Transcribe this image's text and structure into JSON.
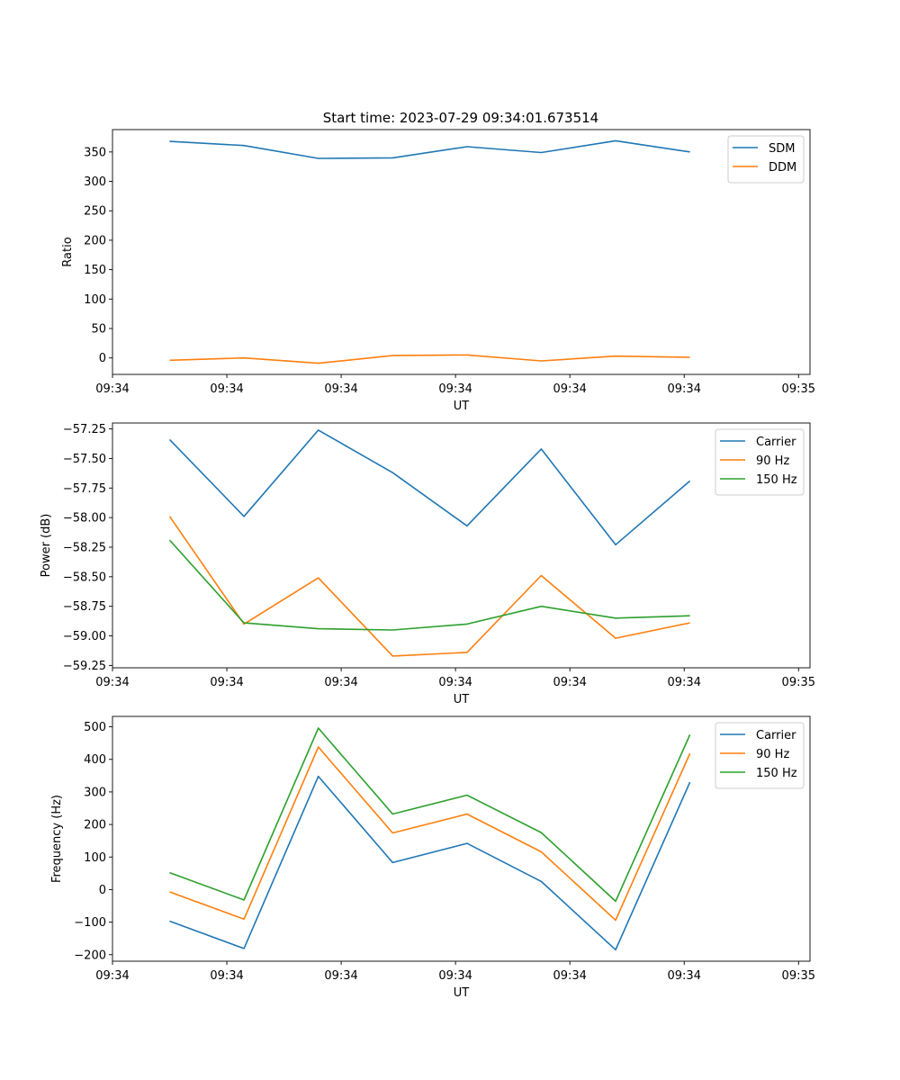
{
  "figure_title": "Start time: 2023-07-29 09:34:01.673514",
  "chart_data": [
    {
      "type": "line",
      "title": "Start time: 2023-07-29 09:34:01.673514",
      "xlabel": "UT",
      "ylabel": "Ratio",
      "xlim": [
        0,
        12.2
      ],
      "ylim": [
        -28,
        388
      ],
      "x": [
        1,
        2.3,
        3.6,
        4.9,
        6.2,
        7.5,
        8.8,
        10.1
      ],
      "xticks": [
        0,
        2,
        4,
        6,
        8,
        10,
        12
      ],
      "xtick_labels": [
        "09:34",
        "09:34",
        "09:34",
        "09:34",
        "09:34",
        "09:34",
        "09:35"
      ],
      "yticks": [
        0,
        50,
        100,
        150,
        200,
        250,
        300,
        350
      ],
      "ytick_labels": [
        "0",
        "50",
        "100",
        "150",
        "200",
        "250",
        "300",
        "350"
      ],
      "legend_position": "top-right",
      "series": [
        {
          "name": "SDM",
          "color": "#1f77b4",
          "values": [
            368,
            361,
            339,
            340,
            359,
            349,
            369,
            350
          ]
        },
        {
          "name": "DDM",
          "color": "#ff7f0e",
          "values": [
            -4,
            0,
            -9,
            4,
            5,
            -5,
            3,
            1
          ]
        }
      ]
    },
    {
      "type": "line",
      "title": "",
      "xlabel": "UT",
      "ylabel": "Power (dB)",
      "xlim": [
        0,
        12.2
      ],
      "ylim": [
        -59.27,
        -57.2
      ],
      "x": [
        1,
        2.3,
        3.6,
        4.9,
        6.2,
        7.5,
        8.8,
        10.1
      ],
      "xticks": [
        0,
        2,
        4,
        6,
        8,
        10,
        12
      ],
      "xtick_labels": [
        "09:34",
        "09:34",
        "09:34",
        "09:34",
        "09:34",
        "09:34",
        "09:35"
      ],
      "yticks": [
        -59.25,
        -59.0,
        -58.75,
        -58.5,
        -58.25,
        -58.0,
        -57.75,
        -57.5,
        -57.25
      ],
      "ytick_labels": [
        "−59.25",
        "−59.00",
        "−58.75",
        "−58.50",
        "−58.25",
        "−58.00",
        "−57.75",
        "−57.50",
        "−57.25"
      ],
      "legend_position": "top-right",
      "series": [
        {
          "name": "Carrier",
          "color": "#1f77b4",
          "values": [
            -57.34,
            -57.99,
            -57.26,
            -57.62,
            -58.07,
            -57.42,
            -58.23,
            -57.69
          ]
        },
        {
          "name": "90 Hz",
          "color": "#ff7f0e",
          "values": [
            -57.99,
            -58.9,
            -58.51,
            -59.17,
            -59.14,
            -58.49,
            -59.02,
            -58.89
          ]
        },
        {
          "name": "150 Hz",
          "color": "#2ca02c",
          "values": [
            -58.19,
            -58.89,
            -58.94,
            -58.95,
            -58.9,
            -58.75,
            -58.85,
            -58.83
          ]
        }
      ]
    },
    {
      "type": "line",
      "title": "",
      "xlabel": "UT",
      "ylabel": "Frequency (Hz)",
      "xlim": [
        0,
        12.2
      ],
      "ylim": [
        -220,
        532
      ],
      "x": [
        1,
        2.3,
        3.6,
        4.9,
        6.2,
        7.5,
        8.8,
        10.1
      ],
      "xticks": [
        0,
        2,
        4,
        6,
        8,
        10,
        12
      ],
      "xtick_labels": [
        "09:34",
        "09:34",
        "09:34",
        "09:34",
        "09:34",
        "09:34",
        "09:35"
      ],
      "yticks": [
        -200,
        -100,
        0,
        100,
        200,
        300,
        400,
        500
      ],
      "ytick_labels": [
        "−200",
        "−100",
        "0",
        "100",
        "200",
        "300",
        "400",
        "500"
      ],
      "legend_position": "top-right",
      "series": [
        {
          "name": "Carrier",
          "color": "#1f77b4",
          "values": [
            -97,
            -181,
            348,
            83,
            142,
            25,
            -185,
            330
          ]
        },
        {
          "name": "90 Hz",
          "color": "#ff7f0e",
          "values": [
            -7,
            -91,
            438,
            174,
            232,
            116,
            -94,
            418
          ]
        },
        {
          "name": "150 Hz",
          "color": "#2ca02c",
          "values": [
            52,
            -32,
            496,
            232,
            290,
            175,
            -36,
            476
          ]
        }
      ]
    }
  ]
}
